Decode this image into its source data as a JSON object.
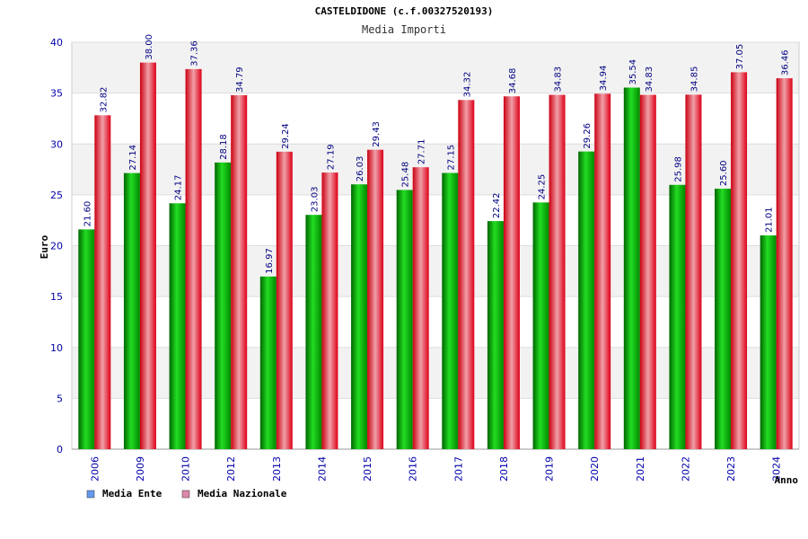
{
  "chart_data": {
    "type": "bar",
    "title": "CASTELDIDONE (c.f.00327520193)",
    "subtitle": "Media Importi",
    "xlabel": "Anno",
    "ylabel": "Euro",
    "ylim": [
      0,
      40
    ],
    "yticks": [
      "0",
      "5",
      "10",
      "15",
      "20",
      "25",
      "30",
      "35",
      "40"
    ],
    "categories": [
      "2006",
      "2009",
      "2010",
      "2012",
      "2013",
      "2014",
      "2015",
      "2016",
      "2017",
      "2018",
      "2019",
      "2020",
      "2021",
      "2022",
      "2023",
      "2024"
    ],
    "series": [
      {
        "name": "Media Ente",
        "color": "#00b000",
        "legend_color": "#6699ee",
        "values": [
          21.6,
          27.14,
          24.17,
          28.18,
          16.97,
          23.03,
          26.03,
          25.48,
          27.15,
          22.42,
          24.25,
          29.26,
          35.54,
          25.98,
          25.6,
          21.01
        ],
        "labels": [
          "21.60",
          "27.14",
          "24.17",
          "28.18",
          "16.97",
          "23.03",
          "26.03",
          "25.48",
          "27.15",
          "22.42",
          "24.25",
          "29.26",
          "35.54",
          "25.98",
          "25.60",
          "21.01"
        ]
      },
      {
        "name": "Media Nazionale",
        "color": "#e8001c",
        "legend_color": "#dd88aa",
        "values": [
          32.82,
          38.0,
          37.36,
          34.79,
          29.24,
          27.19,
          29.43,
          27.71,
          34.32,
          34.68,
          34.83,
          34.94,
          34.83,
          34.85,
          37.05,
          36.46
        ],
        "labels": [
          "32.82",
          "38.00",
          "37.36",
          "34.79",
          "29.24",
          "27.19",
          "29.43",
          "27.71",
          "34.32",
          "34.68",
          "34.83",
          "34.94",
          "34.83",
          "34.85",
          "37.05",
          "36.46"
        ]
      }
    ],
    "grid": true,
    "legend_position": "bottom-left"
  }
}
